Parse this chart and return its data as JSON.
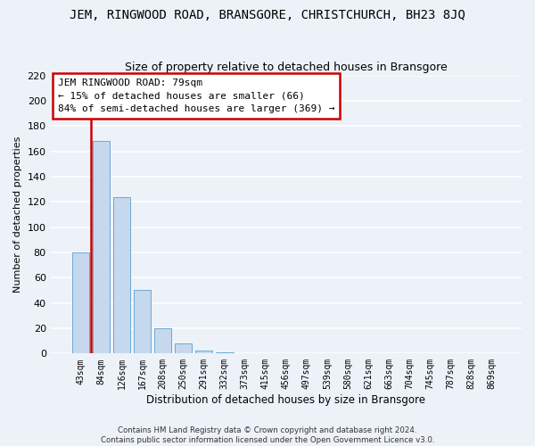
{
  "title": "JEM, RINGWOOD ROAD, BRANSGORE, CHRISTCHURCH, BH23 8JQ",
  "subtitle": "Size of property relative to detached houses in Bransgore",
  "xlabel": "Distribution of detached houses by size in Bransgore",
  "ylabel": "Number of detached properties",
  "bar_color": "#c5d8ee",
  "bar_edge_color": "#6aaad4",
  "categories": [
    "43sqm",
    "84sqm",
    "126sqm",
    "167sqm",
    "208sqm",
    "250sqm",
    "291sqm",
    "332sqm",
    "373sqm",
    "415sqm",
    "456sqm",
    "497sqm",
    "539sqm",
    "580sqm",
    "621sqm",
    "663sqm",
    "704sqm",
    "745sqm",
    "787sqm",
    "828sqm",
    "869sqm"
  ],
  "values": [
    80,
    168,
    124,
    50,
    20,
    8,
    2,
    1,
    0,
    0,
    0,
    0,
    0,
    0,
    0,
    0,
    0,
    0,
    0,
    0,
    0
  ],
  "ylim": [
    0,
    220
  ],
  "yticks": [
    0,
    20,
    40,
    60,
    80,
    100,
    120,
    140,
    160,
    180,
    200,
    220
  ],
  "annotation_text": "JEM RINGWOOD ROAD: 79sqm\n← 15% of detached houses are smaller (66)\n84% of semi-detached houses are larger (369) →",
  "annotation_box_color": "#ffffff",
  "annotation_border_color": "#cc0000",
  "vline_color": "#cc0000",
  "vline_x": 0.5,
  "footer_line1": "Contains HM Land Registry data © Crown copyright and database right 2024.",
  "footer_line2": "Contains public sector information licensed under the Open Government Licence v3.0.",
  "background_color": "#edf2f9",
  "grid_color": "#ffffff",
  "title_fontsize": 10,
  "subtitle_fontsize": 9,
  "ylabel_fontsize": 8,
  "xlabel_fontsize": 8.5,
  "ytick_fontsize": 8,
  "xtick_fontsize": 7
}
